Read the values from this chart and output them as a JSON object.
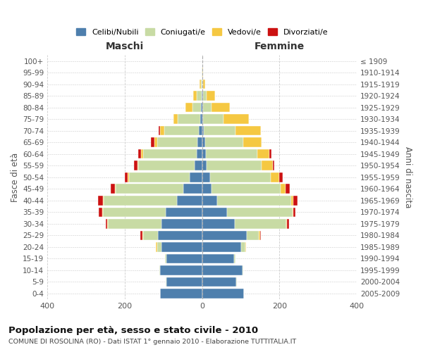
{
  "age_groups": [
    "100+",
    "95-99",
    "90-94",
    "85-89",
    "80-84",
    "75-79",
    "70-74",
    "65-69",
    "60-64",
    "55-59",
    "50-54",
    "45-49",
    "40-44",
    "35-39",
    "30-34",
    "25-29",
    "20-24",
    "15-19",
    "10-14",
    "5-9",
    "0-4"
  ],
  "birth_years": [
    "≤ 1909",
    "1910-1914",
    "1915-1919",
    "1920-1924",
    "1925-1929",
    "1930-1934",
    "1935-1939",
    "1940-1944",
    "1945-1949",
    "1950-1954",
    "1955-1959",
    "1960-1964",
    "1965-1969",
    "1970-1974",
    "1975-1979",
    "1980-1984",
    "1985-1989",
    "1990-1994",
    "1995-1999",
    "2000-2004",
    "2005-2009"
  ],
  "colors": {
    "celibi": "#4e7fad",
    "coniugati": "#c8dba4",
    "vedovi": "#f5c842",
    "divorziati": "#cc1111"
  },
  "males": {
    "celibi": [
      0,
      0,
      0,
      2,
      3,
      5,
      8,
      12,
      15,
      20,
      32,
      48,
      65,
      95,
      105,
      115,
      105,
      92,
      108,
      92,
      108
    ],
    "coniugati": [
      0,
      1,
      3,
      12,
      22,
      58,
      90,
      105,
      138,
      145,
      158,
      175,
      190,
      162,
      138,
      38,
      12,
      5,
      2,
      2,
      0
    ],
    "vedovi": [
      0,
      1,
      3,
      10,
      18,
      12,
      10,
      7,
      5,
      3,
      2,
      2,
      2,
      2,
      2,
      2,
      2,
      0,
      0,
      0,
      0
    ],
    "divorziati": [
      0,
      0,
      0,
      0,
      0,
      0,
      5,
      8,
      8,
      8,
      8,
      12,
      12,
      8,
      5,
      5,
      0,
      0,
      0,
      0,
      0
    ]
  },
  "females": {
    "nubili": [
      0,
      0,
      0,
      2,
      2,
      3,
      5,
      8,
      10,
      12,
      20,
      25,
      38,
      65,
      85,
      115,
      100,
      82,
      105,
      88,
      108
    ],
    "coniugati": [
      0,
      0,
      2,
      10,
      22,
      52,
      82,
      98,
      132,
      142,
      158,
      178,
      192,
      168,
      132,
      32,
      12,
      5,
      2,
      2,
      0
    ],
    "vedovi": [
      0,
      2,
      6,
      22,
      48,
      65,
      65,
      48,
      32,
      28,
      22,
      12,
      5,
      3,
      2,
      2,
      2,
      0,
      0,
      0,
      0
    ],
    "divorziati": [
      0,
      0,
      0,
      0,
      0,
      0,
      0,
      0,
      5,
      5,
      8,
      12,
      12,
      5,
      5,
      2,
      0,
      0,
      0,
      0,
      0
    ]
  },
  "xlim": 400,
  "title": "Popolazione per età, sesso e stato civile - 2010",
  "subtitle": "COMUNE DI ROSOLINA (RO) - Dati ISTAT 1° gennaio 2010 - Elaborazione TUTTITALIA.IT",
  "xlabel_left": "Maschi",
  "xlabel_right": "Femmine",
  "ylabel_left": "Fasce di età",
  "ylabel_right": "Anni di nascita",
  "background_color": "#ffffff",
  "grid_color": "#cccccc"
}
